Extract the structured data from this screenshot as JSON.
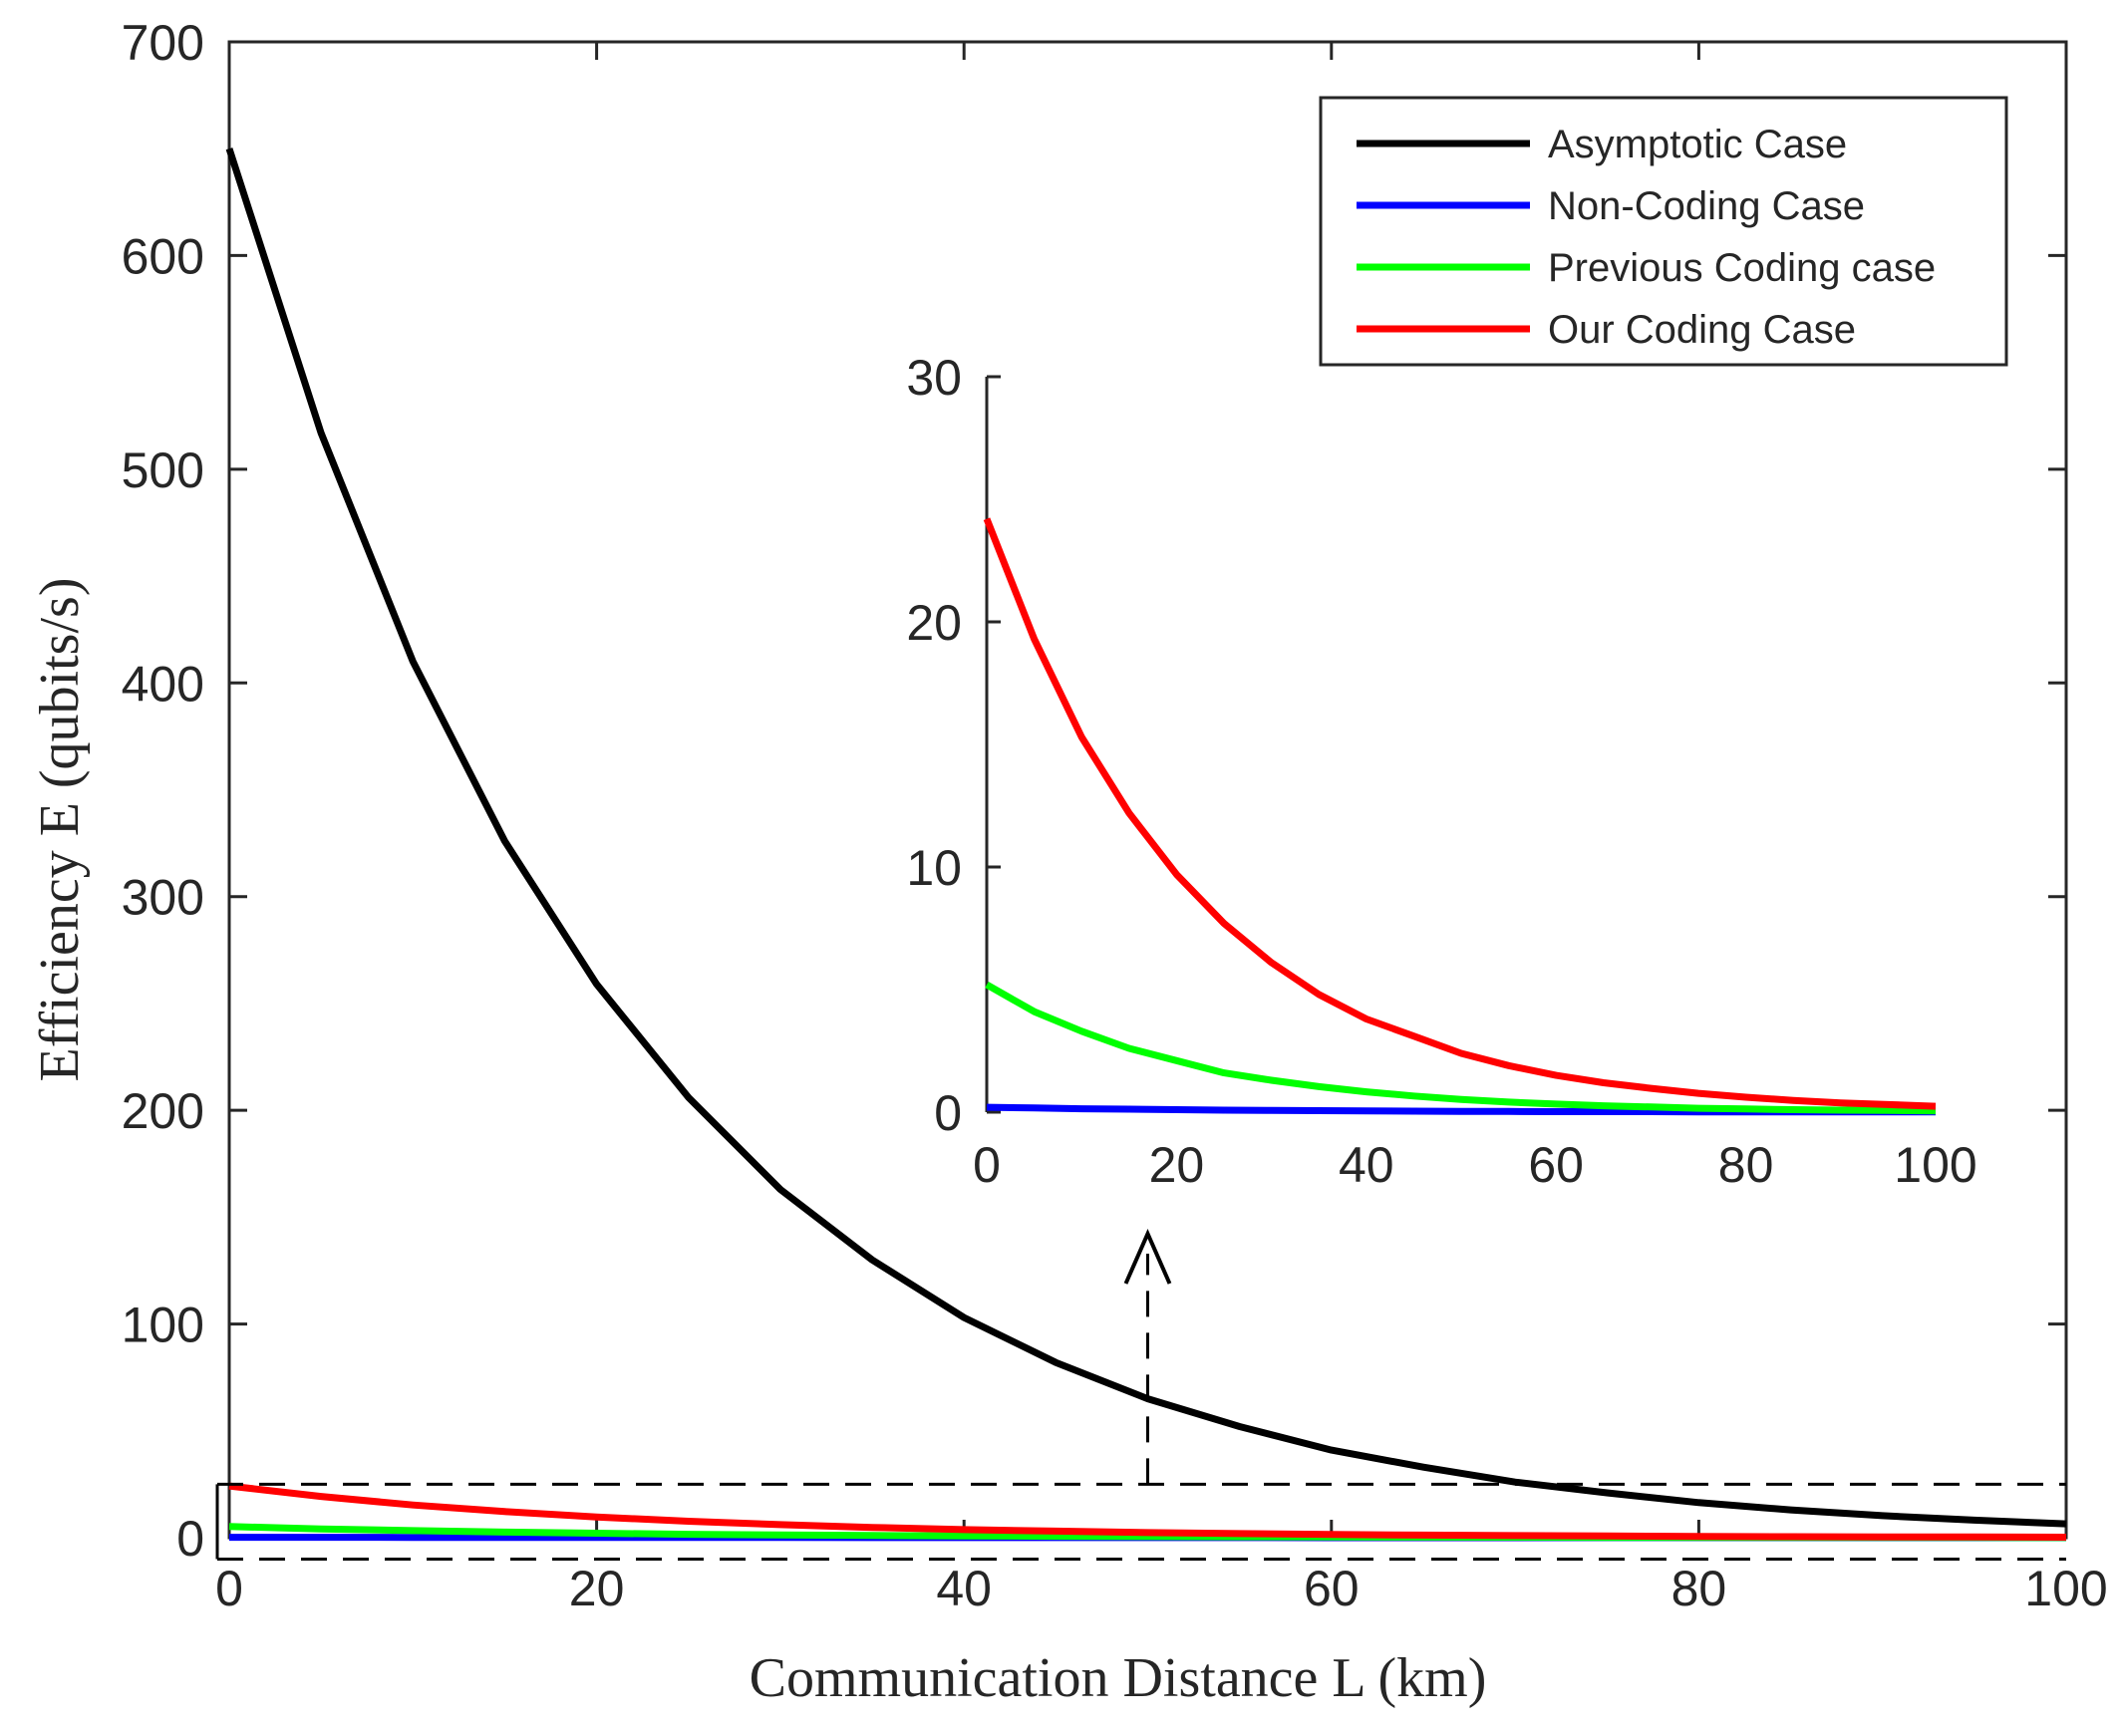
{
  "chart_data": [
    {
      "type": "line",
      "role": "main",
      "xlabel": "Communication Distance L (km)",
      "ylabel": "Efficiency E (qubits/s)",
      "xlim": [
        0,
        100
      ],
      "ylim": [
        0,
        700
      ],
      "xticks": [
        "0",
        "20",
        "40",
        "60",
        "80",
        "100"
      ],
      "yticks": [
        "0",
        "100",
        "200",
        "300",
        "400",
        "500",
        "600",
        "700"
      ],
      "x": [
        0,
        5,
        10,
        15,
        20,
        25,
        30,
        35,
        40,
        45,
        50,
        55,
        60,
        65,
        70,
        75,
        80,
        85,
        90,
        95,
        100
      ],
      "series": [
        {
          "name": "Asymptotic Case",
          "color": "#000000",
          "values": [
            650,
            517,
            410,
            326,
            259,
            206,
            163,
            130,
            103,
            82,
            65,
            52,
            41,
            33,
            26,
            21,
            16.4,
            13.0,
            10.3,
            8.2,
            6.5
          ]
        },
        {
          "name": "Non-Coding Case",
          "color": "#0000ff",
          "values": [
            0.2,
            0.17,
            0.14,
            0.12,
            0.1,
            0.08,
            0.07,
            0.06,
            0.05,
            0.04,
            0.03,
            0.03,
            0.02,
            0.02,
            0.02,
            0.01,
            0.01,
            0.01,
            0.01,
            0.01,
            0.01
          ]
        },
        {
          "name": "Previous Coding case",
          "color": "#00ff00",
          "values": [
            5.2,
            4.1,
            3.3,
            2.6,
            2.1,
            1.6,
            1.3,
            1.04,
            0.83,
            0.66,
            0.52,
            0.41,
            0.33,
            0.26,
            0.21,
            0.16,
            0.13,
            0.1,
            0.08,
            0.07,
            0.05
          ]
        },
        {
          "name": "Our Coding Case",
          "color": "#ff0000",
          "values": [
            24.2,
            19.3,
            15.3,
            12.2,
            9.7,
            7.7,
            6.1,
            4.8,
            3.8,
            3.1,
            2.4,
            1.9,
            1.5,
            1.2,
            0.97,
            0.77,
            0.61,
            0.48,
            0.38,
            0.31,
            0.24
          ]
        }
      ],
      "legend": "top-right",
      "annotation": "dashed box around 0–25 region with arrow pointing to inset"
    },
    {
      "type": "line",
      "role": "inset",
      "xlim": [
        0,
        100
      ],
      "ylim": [
        0,
        30
      ],
      "xticks": [
        "0",
        "20",
        "40",
        "60",
        "80",
        "100"
      ],
      "yticks": [
        "0",
        "10",
        "20",
        "30"
      ],
      "x": [
        0,
        5,
        10,
        15,
        20,
        25,
        30,
        35,
        40,
        45,
        50,
        55,
        60,
        65,
        70,
        75,
        80,
        85,
        90,
        95,
        100
      ],
      "series": [
        {
          "name": "Non-Coding Case",
          "color": "#0000ff",
          "values": [
            0.2,
            0.17,
            0.14,
            0.12,
            0.1,
            0.08,
            0.07,
            0.06,
            0.05,
            0.04,
            0.03,
            0.03,
            0.02,
            0.02,
            0.02,
            0.01,
            0.01,
            0.01,
            0.01,
            0.01,
            0.01
          ]
        },
        {
          "name": "Previous Coding case",
          "color": "#00ff00",
          "values": [
            5.2,
            4.1,
            3.3,
            2.6,
            2.1,
            1.6,
            1.3,
            1.04,
            0.83,
            0.66,
            0.52,
            0.41,
            0.33,
            0.26,
            0.21,
            0.16,
            0.13,
            0.1,
            0.08,
            0.07,
            0.05
          ]
        },
        {
          "name": "Our Coding Case",
          "color": "#ff0000",
          "values": [
            24.2,
            19.3,
            15.3,
            12.2,
            9.7,
            7.7,
            6.1,
            4.8,
            3.8,
            3.1,
            2.4,
            1.9,
            1.5,
            1.2,
            0.97,
            0.77,
            0.61,
            0.48,
            0.38,
            0.31,
            0.24
          ]
        }
      ]
    }
  ],
  "zoom_region": {
    "x_range": [
      0,
      100
    ],
    "y_range": [
      -10,
      25
    ],
    "arrow_x": 50
  }
}
